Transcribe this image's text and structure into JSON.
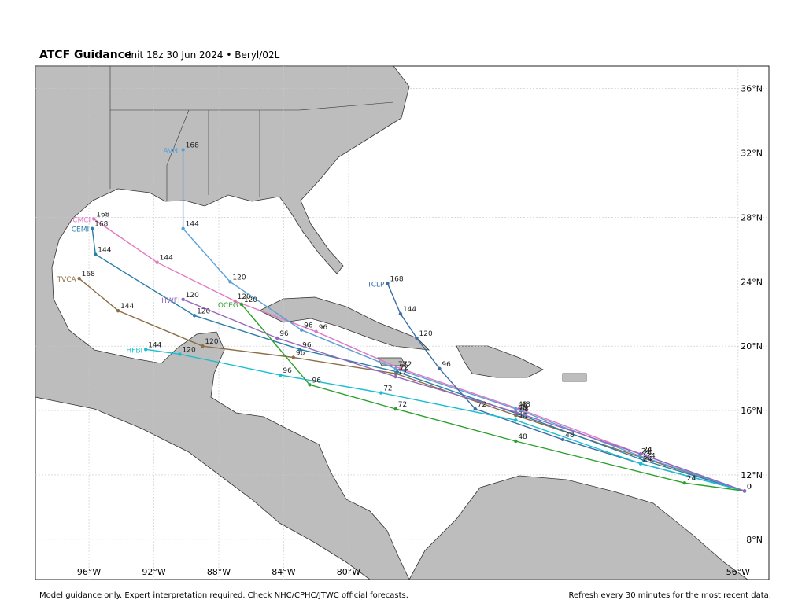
{
  "chart_data": {
    "type": "tracks",
    "title": "ATCF Guidance",
    "subtitle": "Init 18z 30 Jun 2024 • Beryl/02L",
    "footer_left": "Model guidance only. Expert interpretation required. Check NHC/CPHC/JTWC official forecasts.",
    "footer_right": "Refresh every 30 minutes for the most recent data.",
    "hours": [
      0,
      24,
      48,
      72,
      96,
      120,
      144,
      168
    ],
    "xlim": [
      -99.3,
      -54.1
    ],
    "ylim": [
      5.5,
      37.4
    ],
    "xticks": [
      {
        "value": -96,
        "label": "96°W"
      },
      {
        "value": -92,
        "label": "92°W"
      },
      {
        "value": -88,
        "label": "88°W"
      },
      {
        "value": -84,
        "label": "84°W"
      },
      {
        "value": -80,
        "label": "80°W"
      },
      {
        "value": -56,
        "label": "56°W"
      }
    ],
    "yticks": [
      {
        "value": 36,
        "label": "36°N"
      },
      {
        "value": 32,
        "label": "32°N"
      },
      {
        "value": 28,
        "label": "28°N"
      },
      {
        "value": 24,
        "label": "24°N"
      },
      {
        "value": 20,
        "label": "20°N"
      },
      {
        "value": 16,
        "label": "16°N"
      },
      {
        "value": 12,
        "label": "12°N"
      },
      {
        "value": 8,
        "label": "8°N"
      }
    ],
    "grid": true,
    "series": [
      {
        "name": "TVCA",
        "color": "#8c6d46",
        "lon": [
          -55.6,
          -62.0,
          -69.7,
          -77.1,
          -83.4,
          -89.0,
          -94.2,
          -96.6
        ],
        "lat": [
          11.0,
          13.1,
          15.7,
          18.3,
          19.3,
          20.0,
          22.2,
          24.2
        ]
      },
      {
        "name": "CMCI",
        "color": "#e377c2",
        "lon": [
          -55.6,
          -62.0,
          -69.5,
          -76.8,
          -82.0,
          -87.0,
          -91.8,
          -95.7
        ],
        "lat": [
          11.0,
          13.3,
          16.1,
          18.6,
          20.9,
          22.8,
          25.2,
          27.9
        ]
      },
      {
        "name": "CEMI",
        "color": "#2a7fa8",
        "lon": [
          -55.6,
          -61.8,
          -69.6,
          -77.0,
          -83.0,
          -89.5,
          -95.6,
          -95.8
        ],
        "lat": [
          11.0,
          12.9,
          15.8,
          18.4,
          19.8,
          21.9,
          25.7,
          27.3
        ]
      },
      {
        "name": "AVNI",
        "color": "#5aa0d8",
        "lon": [
          -55.6,
          -62.1,
          -69.7,
          -77.1,
          -82.9,
          -87.3,
          -90.2,
          -90.2
        ],
        "lat": [
          11.0,
          13.2,
          16.1,
          18.6,
          21.0,
          24.0,
          27.3,
          32.2
        ]
      },
      {
        "name": "TCLP",
        "color": "#3b6ea5",
        "lon": [
          -55.6,
          -62.0,
          -66.8,
          -72.2,
          -74.4,
          -75.8,
          -76.8,
          -77.6
        ],
        "lat": [
          11.0,
          12.7,
          14.2,
          16.1,
          18.6,
          20.5,
          22.0,
          23.9
        ]
      },
      {
        "name": "HFBI",
        "color": "#17becf",
        "lon": [
          -55.6,
          -62.0,
          -69.7,
          -78.0,
          -84.2,
          -90.4,
          -92.5
        ],
        "lat": [
          11.0,
          12.7,
          15.4,
          17.1,
          18.2,
          19.5,
          19.8
        ]
      },
      {
        "name": "OCEG",
        "color": "#2ca02c",
        "lon": [
          -55.6,
          -59.3,
          -69.7,
          -77.1,
          -82.4,
          -86.6
        ],
        "lat": [
          11.0,
          11.5,
          14.1,
          16.1,
          17.6,
          22.6
        ]
      },
      {
        "name": "HWFI",
        "color": "#9467bd",
        "lon": [
          -55.6,
          -62.0,
          -69.7,
          -77.1,
          -84.4,
          -90.2
        ],
        "lat": [
          11.0,
          13.3,
          15.9,
          18.1,
          20.5,
          22.9
        ]
      }
    ]
  }
}
